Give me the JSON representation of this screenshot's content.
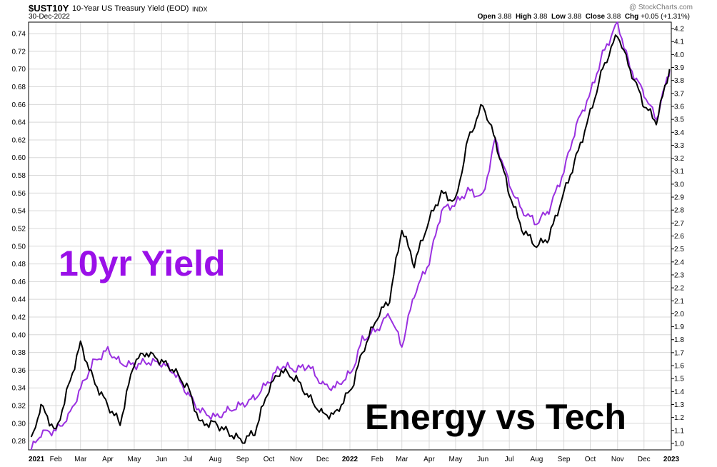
{
  "header": {
    "symbol": "$UST10Y",
    "description": "10-Year US Treasury Yield (EOD)",
    "exchange": "INDX",
    "date": "30-Dec-2022",
    "watermark": "@ StockCharts.com",
    "quote": {
      "open_label": "Open",
      "open": "3.88",
      "high_label": "High",
      "high": "3.88",
      "low_label": "Low",
      "low": "3.88",
      "close_label": "Close",
      "close": "3.88",
      "chg_label": "Chg",
      "chg": "+0.05 (+1.31%)"
    }
  },
  "colors": {
    "yield_line": "#9a30e0",
    "energy_tech_line": "#000000",
    "yield_annotation": "#9a10e8",
    "energy_annotation": "#000000",
    "grid": "#d8d8d8"
  },
  "chart_data": {
    "type": "line",
    "x": [
      "2021-01-04",
      "2021-01-15",
      "2021-02-01",
      "2021-02-15",
      "2021-03-01",
      "2021-03-15",
      "2021-04-01",
      "2021-04-15",
      "2021-05-01",
      "2021-05-15",
      "2021-06-01",
      "2021-06-15",
      "2021-07-01",
      "2021-07-15",
      "2021-08-01",
      "2021-08-15",
      "2021-09-01",
      "2021-09-15",
      "2021-10-01",
      "2021-10-15",
      "2021-11-01",
      "2021-11-15",
      "2021-12-01",
      "2021-12-15",
      "2022-01-03",
      "2022-01-15",
      "2022-02-01",
      "2022-02-15",
      "2022-03-01",
      "2022-03-15",
      "2022-04-01",
      "2022-04-15",
      "2022-05-01",
      "2022-05-15",
      "2022-06-01",
      "2022-06-15",
      "2022-07-01",
      "2022-07-15",
      "2022-08-01",
      "2022-08-15",
      "2022-09-01",
      "2022-09-15",
      "2022-10-01",
      "2022-10-15",
      "2022-11-01",
      "2022-11-15",
      "2022-12-01",
      "2022-12-15",
      "2022-12-30"
    ],
    "series": [
      {
        "axis": "right",
        "values": [
          0.95,
          1.08,
          1.1,
          1.2,
          1.42,
          1.62,
          1.72,
          1.62,
          1.6,
          1.63,
          1.62,
          1.55,
          1.38,
          1.25,
          1.2,
          1.25,
          1.3,
          1.35,
          1.48,
          1.6,
          1.57,
          1.6,
          1.45,
          1.43,
          1.55,
          1.8,
          1.88,
          2.0,
          1.75,
          2.15,
          2.4,
          2.8,
          2.85,
          2.95,
          2.9,
          3.35,
          3.0,
          2.8,
          2.7,
          2.8,
          3.1,
          3.45,
          3.7,
          4.0,
          4.25,
          3.9,
          3.7,
          3.5,
          3.88
        ]
      },
      {
        "axis": "left",
        "values": [
          0.28,
          0.32,
          0.29,
          0.34,
          0.39,
          0.35,
          0.32,
          0.3,
          0.37,
          0.38,
          0.37,
          0.36,
          0.34,
          0.3,
          0.3,
          0.29,
          0.28,
          0.29,
          0.34,
          0.36,
          0.35,
          0.33,
          0.31,
          0.31,
          0.34,
          0.38,
          0.42,
          0.44,
          0.52,
          0.48,
          0.53,
          0.56,
          0.55,
          0.62,
          0.66,
          0.62,
          0.56,
          0.52,
          0.5,
          0.51,
          0.56,
          0.6,
          0.65,
          0.7,
          0.74,
          0.7,
          0.66,
          0.64,
          0.7
        ]
      }
    ],
    "left_axis": {
      "ylim": [
        0.27,
        0.753
      ],
      "ticks": [
        "0.28",
        "0.30",
        "0.32",
        "0.34",
        "0.36",
        "0.38",
        "0.40",
        "0.42",
        "0.44",
        "0.46",
        "0.48",
        "0.50",
        "0.52",
        "0.54",
        "0.56",
        "0.58",
        "0.60",
        "0.62",
        "0.64",
        "0.66",
        "0.68",
        "0.70",
        "0.72",
        "0.74"
      ]
    },
    "right_axis": {
      "ylim": [
        0.95,
        4.25
      ],
      "ticks": [
        "1.0",
        "1.1",
        "1.2",
        "1.3",
        "1.4",
        "1.5",
        "1.6",
        "1.7",
        "1.8",
        "1.9",
        "2.0",
        "2.1",
        "2.2",
        "2.3",
        "2.4",
        "2.5",
        "2.6",
        "2.7",
        "2.8",
        "2.9",
        "3.0",
        "3.1",
        "3.2",
        "3.3",
        "3.4",
        "3.5",
        "3.6",
        "3.7",
        "3.8",
        "3.9",
        "4.0",
        "4.1",
        "4.2"
      ]
    },
    "xlim": [
      "2021-01-01",
      "2023-01-01"
    ],
    "x_ticks": [
      {
        "date": "2021-01-01",
        "label": "2021"
      },
      {
        "date": "2021-02-01",
        "label": "Feb"
      },
      {
        "date": "2021-03-01",
        "label": "Mar"
      },
      {
        "date": "2021-04-01",
        "label": "Apr"
      },
      {
        "date": "2021-05-01",
        "label": "May"
      },
      {
        "date": "2021-06-01",
        "label": "Jun"
      },
      {
        "date": "2021-07-01",
        "label": "Jul"
      },
      {
        "date": "2021-08-01",
        "label": "Aug"
      },
      {
        "date": "2021-09-01",
        "label": "Sep"
      },
      {
        "date": "2021-10-01",
        "label": "Oct"
      },
      {
        "date": "2021-11-01",
        "label": "Nov"
      },
      {
        "date": "2021-12-01",
        "label": "Dec"
      },
      {
        "date": "2022-01-01",
        "label": "2022"
      },
      {
        "date": "2022-02-01",
        "label": "Feb"
      },
      {
        "date": "2022-03-01",
        "label": "Mar"
      },
      {
        "date": "2022-04-01",
        "label": "Apr"
      },
      {
        "date": "2022-05-01",
        "label": "May"
      },
      {
        "date": "2022-06-01",
        "label": "Jun"
      },
      {
        "date": "2022-07-01",
        "label": "Jul"
      },
      {
        "date": "2022-08-01",
        "label": "Aug"
      },
      {
        "date": "2022-09-01",
        "label": "Sep"
      },
      {
        "date": "2022-10-01",
        "label": "Oct"
      },
      {
        "date": "2022-11-01",
        "label": "Nov"
      },
      {
        "date": "2022-12-01",
        "label": "Dec"
      },
      {
        "date": "2023-01-01",
        "label": "2023"
      }
    ],
    "grid": true,
    "annotations": [
      "10yr Yield",
      "Energy vs Tech"
    ]
  }
}
